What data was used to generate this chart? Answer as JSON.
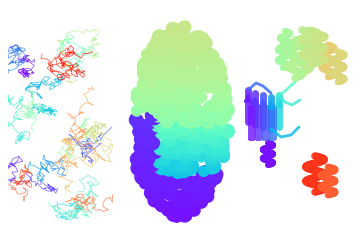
{
  "background_color": "#ffffff",
  "figsize": [
    3.6,
    2.4
  ],
  "dpi": 100
}
